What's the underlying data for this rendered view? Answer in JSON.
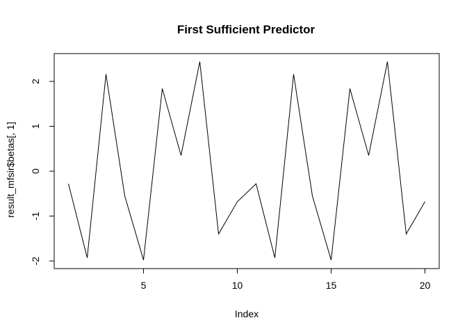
{
  "chart_data": {
    "type": "line",
    "title": "First Sufficient Predictor",
    "xlabel": "Index",
    "ylabel": "result_mfsir$betas[, 1]",
    "xlim": [
      0.24,
      20.76
    ],
    "ylim": [
      -2.17,
      2.62
    ],
    "grid": false,
    "x_ticks": [
      5,
      10,
      15,
      20
    ],
    "y_ticks": [
      -2,
      -1,
      0,
      1,
      2
    ],
    "series": [
      {
        "x": [
          1,
          2,
          3,
          4,
          5,
          6,
          7,
          8,
          9,
          10,
          11,
          12,
          13,
          14,
          15,
          16,
          17,
          18,
          19,
          20
        ],
        "values": [
          -0.28,
          -1.93,
          2.16,
          -0.55,
          -1.98,
          1.84,
          0.35,
          2.44,
          -1.4,
          -0.68,
          -0.28,
          -1.93,
          2.16,
          -0.55,
          -1.98,
          1.84,
          0.35,
          2.44,
          -1.4,
          -0.68
        ]
      }
    ]
  }
}
